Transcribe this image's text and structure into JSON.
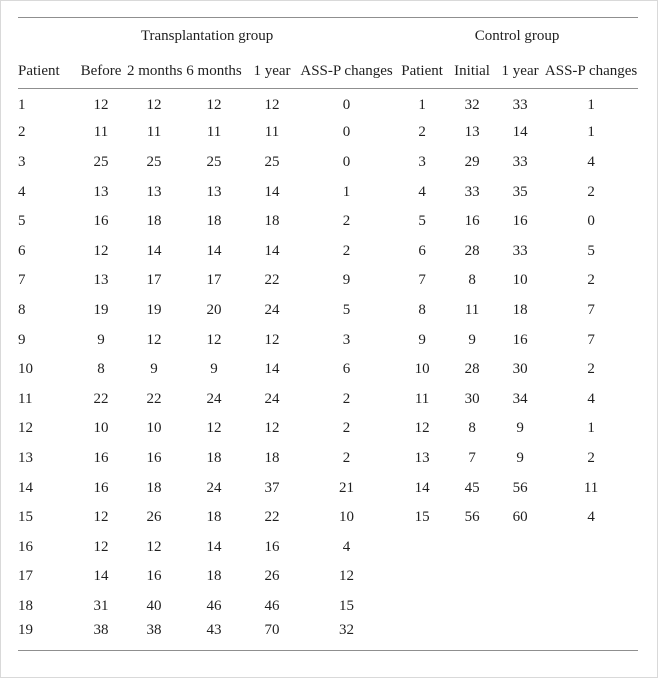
{
  "table": {
    "group_headers": [
      {
        "label": "Transplantation group"
      },
      {
        "label": "Control group"
      }
    ],
    "column_headers": [
      "Patient",
      "Before",
      "2 months",
      "6 months",
      "1 year",
      "ASS-P changes",
      "Patient",
      "Initial",
      "1 year",
      "ASS-P changes"
    ],
    "rows": [
      [
        "1",
        "12",
        "12",
        "12",
        "12",
        "0",
        "1",
        "32",
        "33",
        "1"
      ],
      [
        "2",
        "11",
        "11",
        "11",
        "11",
        "0",
        "2",
        "13",
        "14",
        "1"
      ],
      [
        "3",
        "25",
        "25",
        "25",
        "25",
        "0",
        "3",
        "29",
        "33",
        "4"
      ],
      [
        "4",
        "13",
        "13",
        "13",
        "14",
        "1",
        "4",
        "33",
        "35",
        "2"
      ],
      [
        "5",
        "16",
        "18",
        "18",
        "18",
        "2",
        "5",
        "16",
        "16",
        "0"
      ],
      [
        "6",
        "12",
        "14",
        "14",
        "14",
        "2",
        "6",
        "28",
        "33",
        "5"
      ],
      [
        "7",
        "13",
        "17",
        "17",
        "22",
        "9",
        "7",
        "8",
        "10",
        "2"
      ],
      [
        "8",
        "19",
        "19",
        "20",
        "24",
        "5",
        "8",
        "11",
        "18",
        "7"
      ],
      [
        "9",
        "9",
        "12",
        "12",
        "12",
        "3",
        "9",
        "9",
        "16",
        "7"
      ],
      [
        "10",
        "8",
        "9",
        "9",
        "14",
        "6",
        "10",
        "28",
        "30",
        "2"
      ],
      [
        "11",
        "22",
        "22",
        "24",
        "24",
        "2",
        "11",
        "30",
        "34",
        "4"
      ],
      [
        "12",
        "10",
        "10",
        "12",
        "12",
        "2",
        "12",
        "8",
        "9",
        "1"
      ],
      [
        "13",
        "16",
        "16",
        "18",
        "18",
        "2",
        "13",
        "7",
        "9",
        "2"
      ],
      [
        "14",
        "16",
        "18",
        "24",
        "37",
        "21",
        "14",
        "45",
        "56",
        "11"
      ],
      [
        "15",
        "12",
        "26",
        "18",
        "22",
        "10",
        "15",
        "56",
        "60",
        "4"
      ],
      [
        "16",
        "12",
        "12",
        "14",
        "16",
        "4",
        "",
        "",
        "",
        ""
      ],
      [
        "17",
        "14",
        "16",
        "18",
        "26",
        "12",
        "",
        "",
        "",
        ""
      ],
      [
        "18",
        "31",
        "40",
        "46",
        "46",
        "15",
        "",
        "",
        "",
        ""
      ],
      [
        "19",
        "38",
        "38",
        "43",
        "70",
        "32",
        "",
        "",
        "",
        ""
      ]
    ]
  },
  "colors": {
    "rule": "#8f8f8f",
    "page_border": "#d9d9d9",
    "text": "#1f1f1f"
  }
}
